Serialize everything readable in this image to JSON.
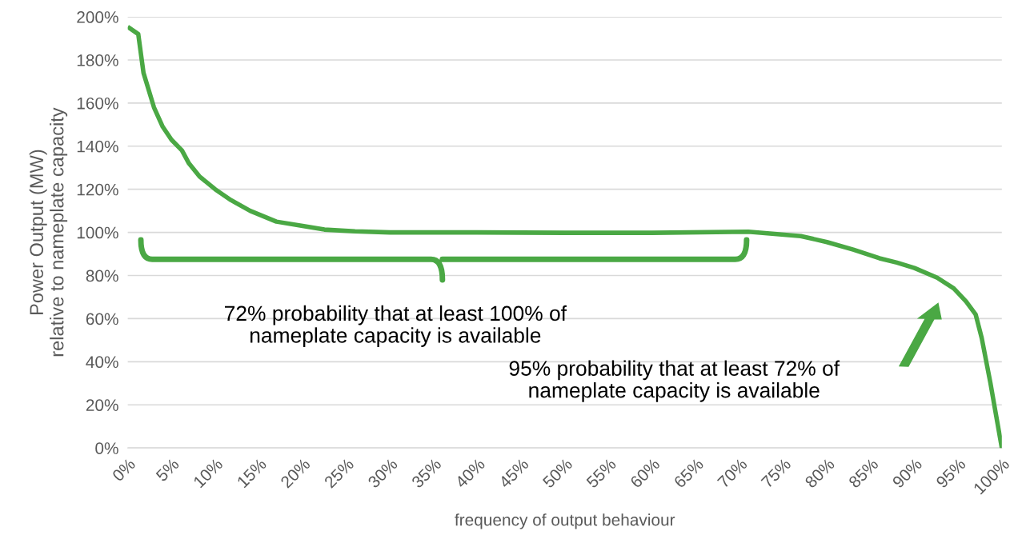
{
  "chart_data": {
    "type": "line",
    "xlabel": "frequency of output behaviour",
    "ylabel": "Power Output (MW)\nrelative to nameplate capacity",
    "x": [
      0.2,
      1.2,
      1.8,
      3,
      4,
      5,
      6.2,
      7,
      8.2,
      10,
      11.8,
      14,
      17,
      20,
      22.5,
      26,
      30,
      40,
      50,
      60,
      71,
      74,
      77,
      80,
      83,
      86,
      88,
      90,
      92.6,
      94.5,
      95.9,
      97,
      97.7,
      98.7,
      100
    ],
    "series": [
      {
        "color": "#4aa844",
        "values": [
          194.8,
          192,
          174,
          158,
          149,
          143,
          138,
          132,
          126,
          120,
          115,
          110,
          105,
          103,
          101.3,
          100.5,
          100,
          100,
          99.8,
          99.8,
          100.3,
          99.3,
          98.3,
          95.5,
          92,
          88,
          86,
          83.5,
          79,
          74,
          68,
          62,
          51,
          30,
          0
        ]
      }
    ],
    "xlim": [
      0,
      100
    ],
    "ylim": [
      0,
      200
    ],
    "xticks": [
      {
        "value": 0,
        "label": "0%"
      },
      {
        "value": 5,
        "label": "5%"
      },
      {
        "value": 10,
        "label": "10%"
      },
      {
        "value": 15,
        "label": "15%"
      },
      {
        "value": 20,
        "label": "20%"
      },
      {
        "value": 25,
        "label": "25%"
      },
      {
        "value": 30,
        "label": "30%"
      },
      {
        "value": 35,
        "label": "35%"
      },
      {
        "value": 40,
        "label": "40%"
      },
      {
        "value": 45,
        "label": "45%"
      },
      {
        "value": 50,
        "label": "50%"
      },
      {
        "value": 55,
        "label": "55%"
      },
      {
        "value": 60,
        "label": "60%"
      },
      {
        "value": 65,
        "label": "65%"
      },
      {
        "value": 70,
        "label": "70%"
      },
      {
        "value": 75,
        "label": "75%"
      },
      {
        "value": 80,
        "label": "80%"
      },
      {
        "value": 85,
        "label": "85%"
      },
      {
        "value": 90,
        "label": "90%"
      },
      {
        "value": 95,
        "label": "95%"
      },
      {
        "value": 100,
        "label": "100%"
      }
    ],
    "yticks": [
      {
        "value": 0,
        "label": "0%"
      },
      {
        "value": 20,
        "label": "20%"
      },
      {
        "value": 40,
        "label": "40%"
      },
      {
        "value": 60,
        "label": "60%"
      },
      {
        "value": 80,
        "label": "80%"
      },
      {
        "value": 100,
        "label": "100%"
      },
      {
        "value": 120,
        "label": "120%"
      },
      {
        "value": 140,
        "label": "140%"
      },
      {
        "value": 160,
        "label": "160%"
      },
      {
        "value": 180,
        "label": "180%"
      },
      {
        "value": 200,
        "label": "200%"
      }
    ],
    "grid": "y",
    "marker": "none",
    "line_style": "solid",
    "annotations": [
      "72% probability that at least 100% of\nnameplate capacity is available",
      "95% probability that at least 72% of\nnameplate capacity is available"
    ]
  }
}
